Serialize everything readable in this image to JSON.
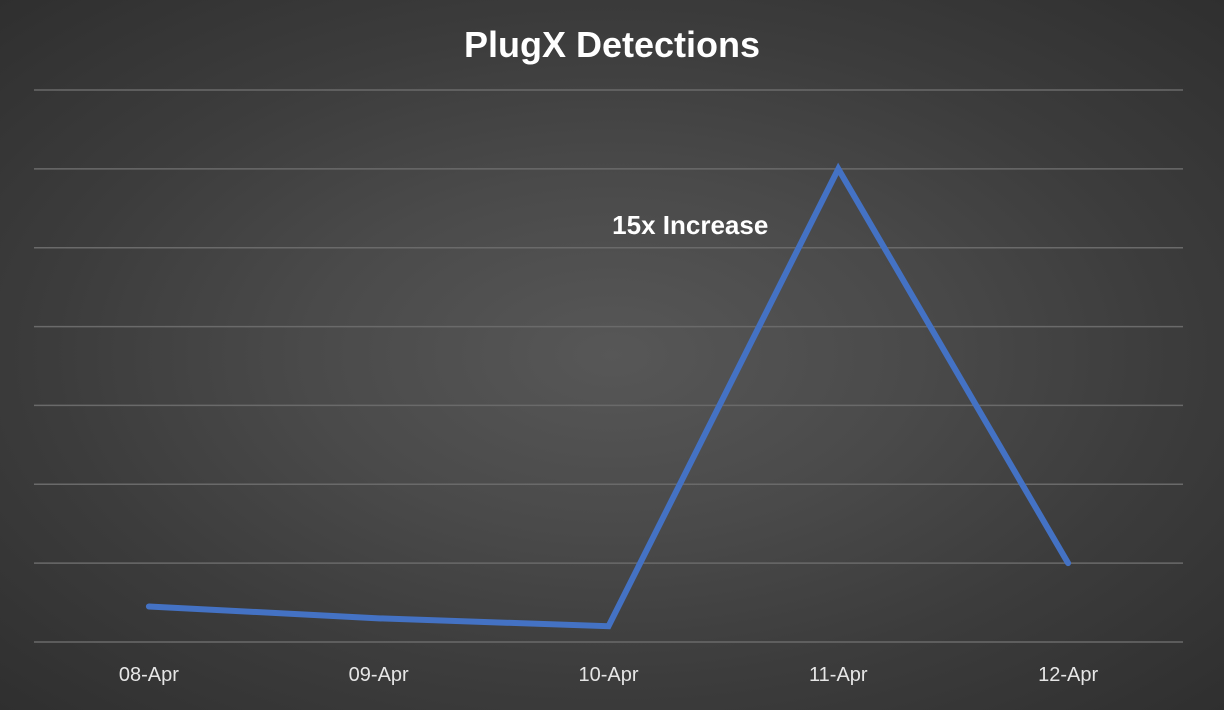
{
  "chart_data": {
    "type": "line",
    "title": "PlugX Detections",
    "xlabel": "",
    "ylabel": "",
    "categories": [
      "08-Apr",
      "09-Apr",
      "10-Apr",
      "11-Apr",
      "12-Apr"
    ],
    "series": [
      {
        "values": [
          0.45,
          0.3,
          0.2,
          6.0,
          1.0
        ],
        "color": "#4472c4"
      }
    ],
    "ylim": [
      0,
      7
    ],
    "grid": true,
    "legend": "none",
    "annotations": [
      {
        "text": "15x Increase",
        "category": "11-Apr"
      }
    ]
  },
  "colors": {
    "background": "#3d3d3d",
    "line": "#4472c4",
    "gridline": "#6a6a6a",
    "text": "#ffffff"
  }
}
